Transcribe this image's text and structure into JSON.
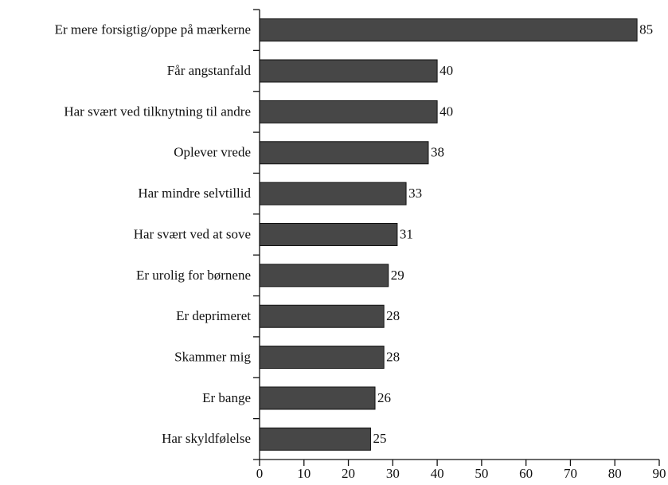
{
  "chart_data": {
    "type": "barh",
    "categories": [
      "Er mere forsigtig/oppe på mærkerne",
      "Får angstanfald",
      "Har svært ved tilknytning til andre",
      "Oplever vrede",
      "Har mindre selvtillid",
      "Har svært ved at sove",
      "Er urolig for børnene",
      "Er deprimeret",
      "Skammer mig",
      "Er bange",
      "Har skyldfølelse"
    ],
    "values": [
      85,
      40,
      40,
      38,
      33,
      31,
      29,
      28,
      28,
      26,
      25
    ],
    "color": "#474747",
    "xlim": [
      0,
      90
    ],
    "xticks": [
      0,
      10,
      20,
      30,
      40,
      50,
      60,
      70,
      80,
      90
    ],
    "grid": false
  }
}
